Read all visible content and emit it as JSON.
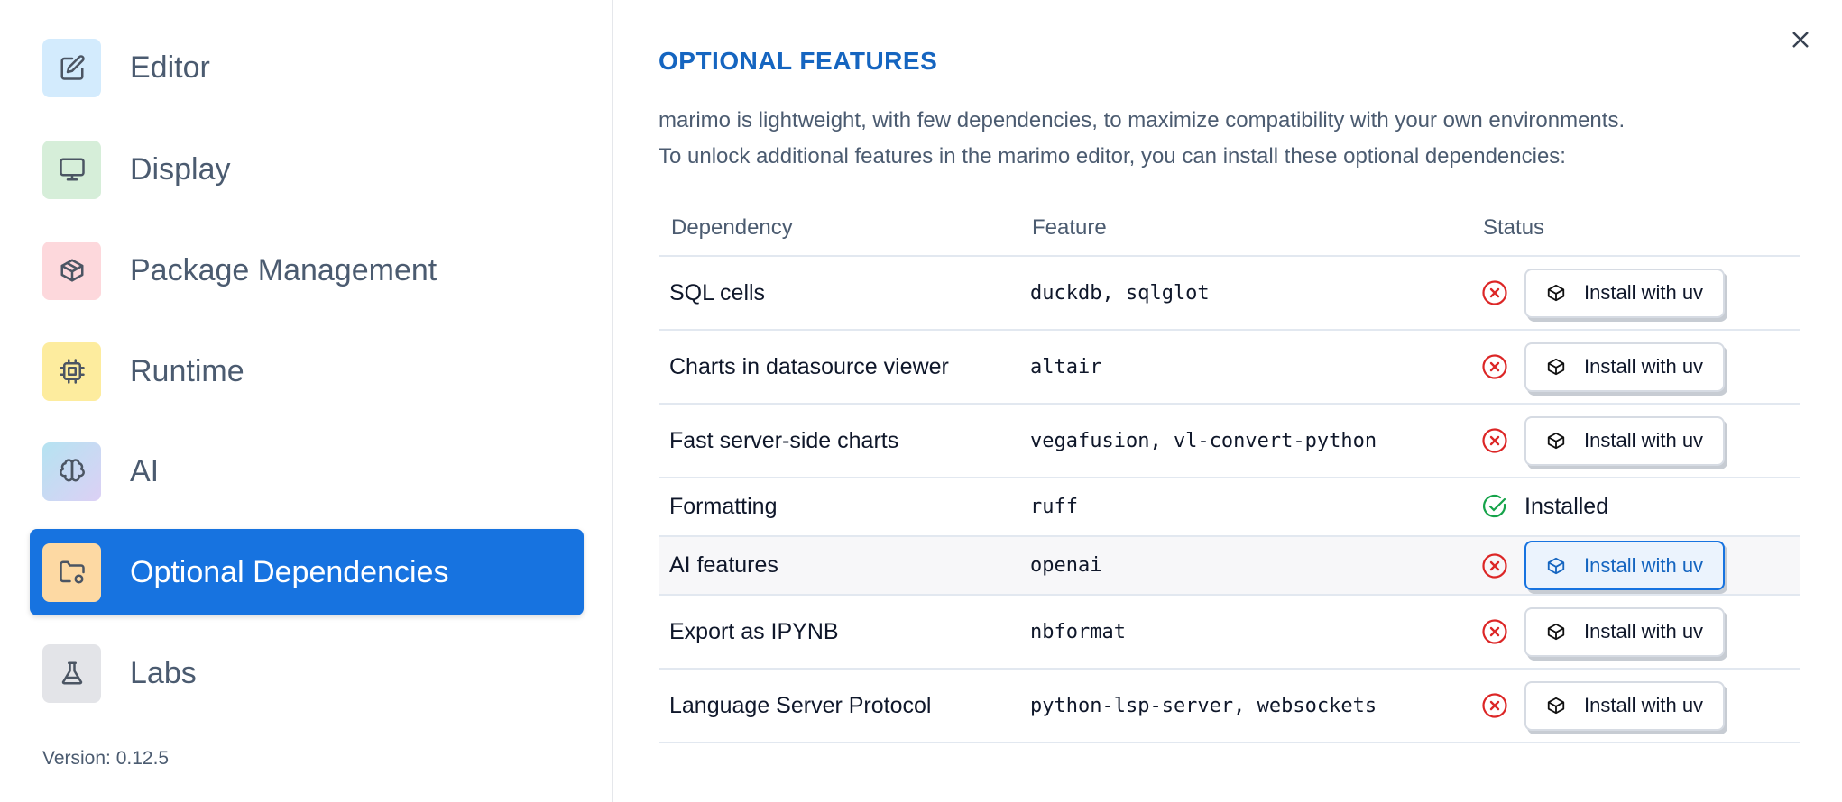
{
  "sidebar": {
    "items": [
      {
        "label": "Editor",
        "icon": "edit-icon",
        "bg": "#d3ebfd"
      },
      {
        "label": "Display",
        "icon": "monitor-icon",
        "bg": "#d6eed9"
      },
      {
        "label": "Package Management",
        "icon": "package-icon",
        "bg": "#fdd8dc"
      },
      {
        "label": "Runtime",
        "icon": "cpu-icon",
        "bg": "#fdec9e"
      },
      {
        "label": "AI",
        "icon": "brain-icon",
        "bg": "linear-gradient(135deg,#b5e3f1,#dcd0f5)"
      },
      {
        "label": "Optional Dependencies",
        "icon": "folder-cog-icon",
        "bg": "#fdd9a3",
        "active": true
      },
      {
        "label": "Labs",
        "icon": "flask-icon",
        "bg": "#e3e4e8"
      }
    ],
    "version": "Version: 0.12.5"
  },
  "main": {
    "title": "OPTIONAL FEATURES",
    "description_line1": "marimo is lightweight, with few dependencies, to maximize compatibility with your own environments.",
    "description_line2": "To unlock additional features in the marimo editor, you can install these optional dependencies:",
    "columns": [
      "Dependency",
      "Feature",
      "Status"
    ],
    "rows": [
      {
        "dependency": "SQL cells",
        "feature": "duckdb, sqlglot",
        "status": "missing",
        "action": "Install with uv"
      },
      {
        "dependency": "Charts in datasource viewer",
        "feature": "altair",
        "status": "missing",
        "action": "Install with uv"
      },
      {
        "dependency": "Fast server-side charts",
        "feature": "vegafusion, vl-convert-python",
        "status": "missing",
        "action": "Install with uv"
      },
      {
        "dependency": "Formatting",
        "feature": "ruff",
        "status": "installed",
        "action": "Installed"
      },
      {
        "dependency": "AI features",
        "feature": "openai",
        "status": "missing",
        "action": "Install with uv",
        "hovered": true
      },
      {
        "dependency": "Export as IPYNB",
        "feature": "nbformat",
        "status": "missing",
        "action": "Install with uv"
      },
      {
        "dependency": "Language Server Protocol",
        "feature": "python-lsp-server, websockets",
        "status": "missing",
        "action": "Install with uv"
      }
    ]
  },
  "colors": {
    "accent": "#1773e0",
    "title": "#1565c0",
    "error": "#dc2626",
    "success": "#16a34a"
  }
}
